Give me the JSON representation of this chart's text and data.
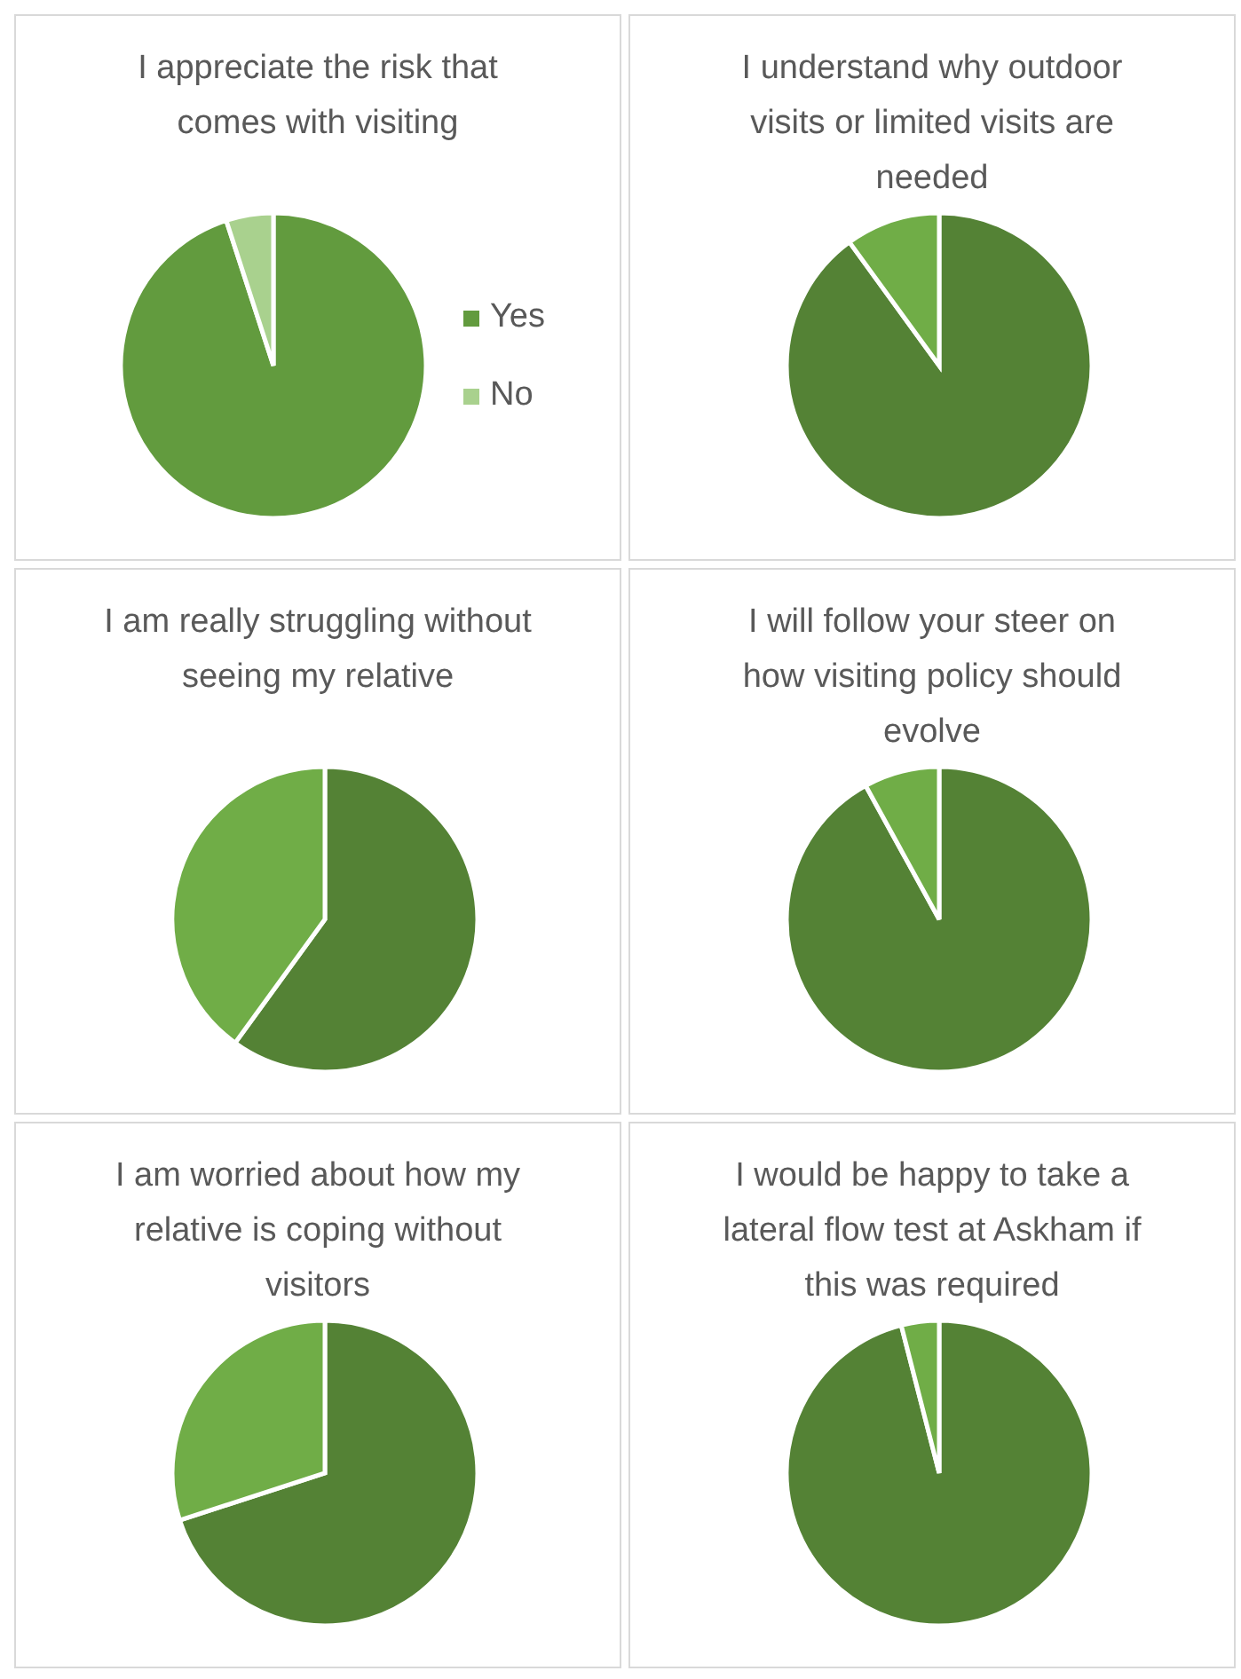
{
  "chart_data": [
    {
      "type": "pie",
      "title": "I appreciate the risk that comes with visiting",
      "categories": [
        "Yes",
        "No"
      ],
      "values": [
        95,
        5
      ],
      "colors": [
        "#629b3e",
        "#a9d18e"
      ],
      "legend": "right"
    },
    {
      "type": "pie",
      "title": "I understand why outdoor visits or limited visits are needed",
      "categories": [
        null,
        null
      ],
      "values": [
        90,
        10
      ],
      "colors": [
        "#548235",
        "#70ad47"
      ]
    },
    {
      "type": "pie",
      "title": "I am really struggling without seeing my relative",
      "categories": [
        null,
        null
      ],
      "values": [
        60,
        40
      ],
      "colors": [
        "#548235",
        "#70ad47"
      ]
    },
    {
      "type": "pie",
      "title": "I will follow your steer on how visiting policy should evolve",
      "categories": [
        null,
        null
      ],
      "values": [
        92,
        8
      ],
      "colors": [
        "#548235",
        "#70ad47"
      ]
    },
    {
      "type": "pie",
      "title": "I am worried about how my relative is coping without visitors",
      "categories": [
        null,
        null
      ],
      "values": [
        70,
        30
      ],
      "colors": [
        "#548235",
        "#70ad47"
      ]
    },
    {
      "type": "pie",
      "title": "I would be happy to take a lateral flow test at Askham if this was required",
      "categories": [
        null,
        null
      ],
      "values": [
        96,
        4
      ],
      "colors": [
        "#548235",
        "#70ad47"
      ]
    }
  ]
}
